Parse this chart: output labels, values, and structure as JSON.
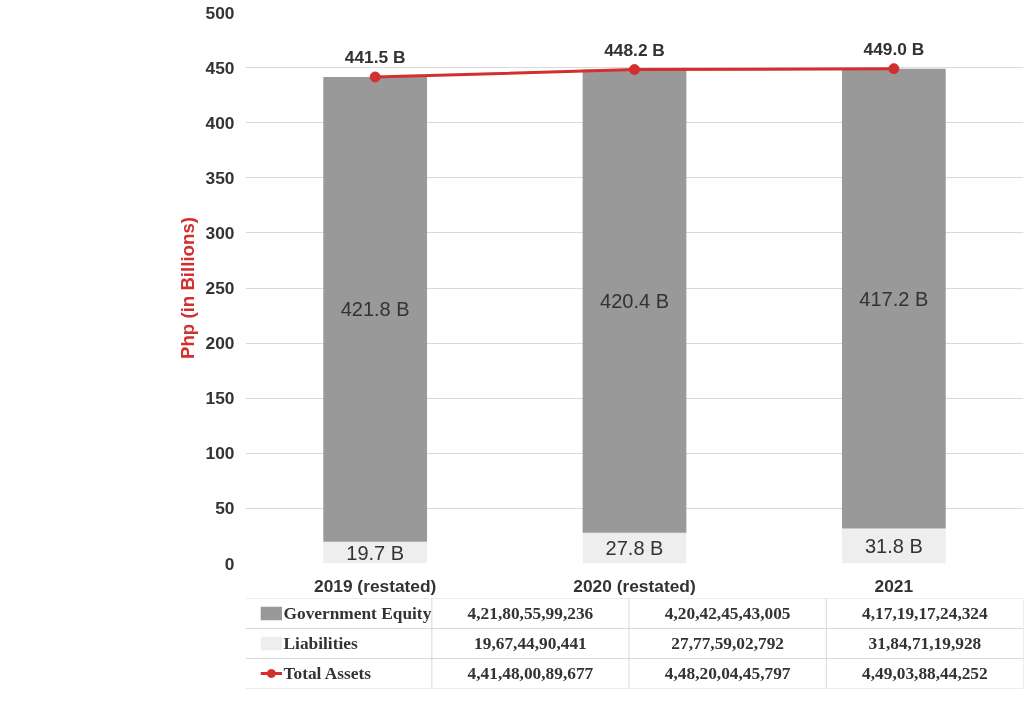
{
  "chart_data": {
    "type": "bar",
    "stacked": true,
    "categories": [
      "2019 (restated)",
      "2020 (restated)",
      "2021"
    ],
    "ylabel": "Php (in Billions)",
    "ylim": [
      0,
      500
    ],
    "yticks": [
      0,
      50,
      100,
      150,
      200,
      250,
      300,
      350,
      400,
      450,
      500
    ],
    "grid": "y",
    "legend": "bottom",
    "series": [
      {
        "name": "Liabilities",
        "color": "#eeeeee",
        "values": [
          19.7,
          27.8,
          31.8
        ],
        "value_labels": [
          "19.7 B",
          "27.8 B",
          "31.8 B"
        ]
      },
      {
        "name": "Government Equity",
        "color": "#999999",
        "values": [
          421.8,
          420.4,
          417.2
        ],
        "value_labels": [
          "421.8 B",
          "420.4 B",
          "417.2 B"
        ]
      },
      {
        "name": "Total Assets",
        "type": "line",
        "color": "#d32f2f",
        "marker": "circle",
        "values": [
          441.5,
          448.2,
          449.0
        ],
        "value_labels": [
          "441.5 B",
          "448.2 B",
          "449.0 B"
        ]
      }
    ],
    "annotations": [
      "4,21,80,55,99,236",
      "4,20,42,45,43,005",
      "4,17,19,17,24,324",
      "19,67,44,90,441",
      "27,77,59,02,792",
      "31,84,71,19,928",
      "4,41,48,00,89,677",
      "4,48,20,04,45,797",
      "4,49,03,88,44,252"
    ]
  }
}
